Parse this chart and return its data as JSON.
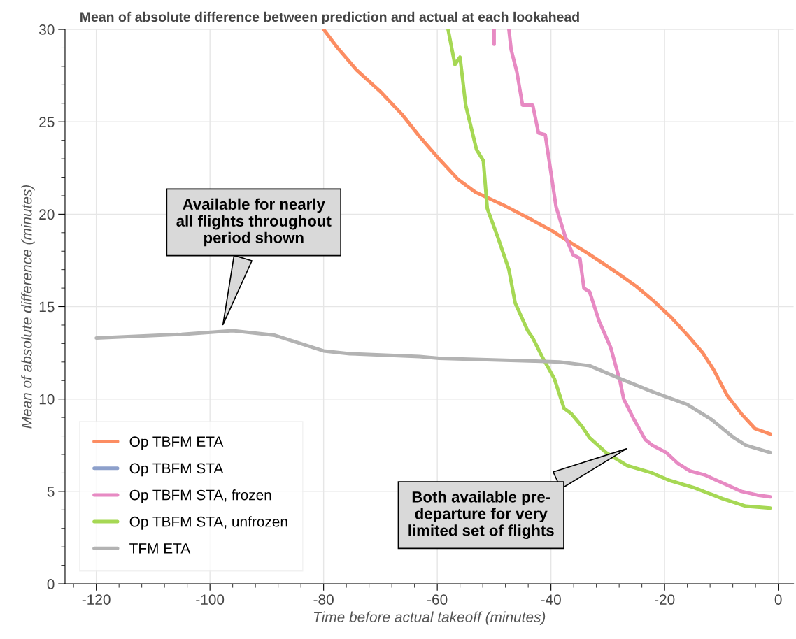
{
  "chart_data": {
    "type": "line",
    "title": "Mean of absolute difference between prediction and actual at each lookahead",
    "xlabel": "Time before actual takeoff (minutes)",
    "ylabel": "Mean of absolute difference (minutes)",
    "xlim": [
      -125.5,
      2.7
    ],
    "xticks": [
      -120,
      -100,
      -80,
      -60,
      -40,
      -20,
      0
    ],
    "ylim": [
      0,
      30
    ],
    "yticks": [
      0,
      5,
      10,
      15,
      20,
      25,
      30
    ],
    "grid": true,
    "legend": "bottom left",
    "marker": "none",
    "line_style": "solid",
    "series": [
      {
        "name": "Op TBFM ETA",
        "color": "#fc8d62",
        "x": [
          -80,
          -77.8,
          -74.2,
          -69.9,
          -66.2,
          -63.1,
          -60,
          -56.4,
          -53.3,
          -48.4,
          -43.4,
          -39.8,
          -37.3,
          -33.6,
          -28.7,
          -25,
          -21.9,
          -18.8,
          -15.8,
          -13.3,
          -11.4,
          -9,
          -6.5,
          -4.1,
          -1.4
        ],
        "values": [
          30,
          29.1,
          27.8,
          26.6,
          25.4,
          24.2,
          23.1,
          21.9,
          21.2,
          20.5,
          19.7,
          19.1,
          18.6,
          17.9,
          16.9,
          16.1,
          15.3,
          14.4,
          13.4,
          12.5,
          11.6,
          10.2,
          9.2,
          8.4,
          8.1
        ]
      },
      {
        "name": "Op TBFM STA",
        "color": "#8da0cb"
      },
      {
        "name": "Op TBFM STA, frozen",
        "color": "#e78ac3",
        "x": [
          -50.0,
          -50.0,
          -49.0,
          -47.4,
          -47.0,
          -46.0,
          -45.0,
          -43.2,
          -42.2,
          -41.0,
          -39.1,
          -37.5,
          -36.1,
          -34.9,
          -34.2,
          -33.2,
          -31.5,
          -29.5,
          -27.8,
          -27.2,
          -25.4,
          -23.4,
          -22.2,
          -19.7,
          -17.6,
          -15.5,
          -13.0,
          -9.4,
          -6.5,
          -3.7,
          -1.4
        ],
        "values": [
          30,
          29.2,
          null,
          30,
          28.9,
          27.7,
          25.9,
          25.9,
          24.4,
          24.3,
          20.4,
          18.8,
          17.8,
          17.6,
          16.0,
          15.8,
          14.2,
          12.8,
          10.9,
          10.0,
          8.9,
          7.8,
          7.5,
          7.1,
          6.5,
          6.1,
          5.9,
          5.4,
          5.0,
          4.8,
          4.7
        ]
      },
      {
        "name": "Op TBFM STA, unfrozen",
        "color": "#a6d854",
        "x": [
          -58.1,
          -56.9,
          -56.0,
          -55.0,
          -53.1,
          -51.9,
          -51.2,
          -49.4,
          -47.4,
          -46.3,
          -44.1,
          -43.2,
          -41.4,
          -39.4,
          -37.7,
          -36.4,
          -34.5,
          -33.2,
          -30.3,
          -26.6,
          -22.2,
          -19.2,
          -14.8,
          -9.8,
          -5.7,
          -1.4
        ],
        "values": [
          30,
          28.1,
          28.5,
          25.9,
          23.5,
          22.9,
          20.3,
          18.8,
          17.0,
          15.2,
          13.7,
          13.3,
          12.2,
          11.1,
          9.5,
          9.2,
          8.5,
          7.9,
          7.1,
          6.4,
          6.0,
          5.6,
          5.2,
          4.6,
          4.2,
          4.1
        ]
      },
      {
        "name": "TFM ETA",
        "color": "#b3b3b3",
        "x": [
          -120,
          -105,
          -96,
          -88.6,
          -80,
          -75.4,
          -63.1,
          -59.7,
          -42.7,
          -38.5,
          -33.2,
          -27.8,
          -22.2,
          -16.0,
          -11.8,
          -7.8,
          -5.7,
          -1.4
        ],
        "values": [
          13.3,
          13.5,
          13.7,
          13.45,
          12.6,
          12.45,
          12.3,
          12.2,
          12.05,
          12.0,
          11.8,
          11.1,
          10.4,
          9.7,
          8.9,
          7.9,
          7.5,
          7.1
        ]
      }
    ],
    "annotations": [
      "Available for nearly\nall flights throughout\nperiod shown",
      "Both available pre-\ndeparture for very\nlimited set of flights"
    ]
  }
}
